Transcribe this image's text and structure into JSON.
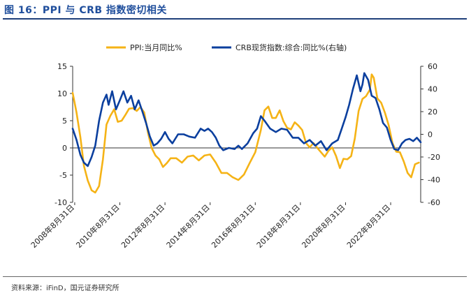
{
  "header": {
    "title": "图 16：PPI 与 CRB 指数密切相关"
  },
  "footer": {
    "source": "资料来源：iFinD，国元证券研究所"
  },
  "colors": {
    "ppi": "#F5B316",
    "crb": "#0B3F9E",
    "axis": "#333333"
  },
  "chart_data": {
    "type": "line",
    "title": "",
    "legend": [
      "PPI:当月同比%",
      "CRB现货指数:综合:同比%(右轴)"
    ],
    "x_tick_labels": [
      "2008年8月31日",
      "2010年8月31日",
      "2012年8月31日",
      "2014年8月31日",
      "2016年8月31日",
      "2018年8月31日",
      "2020年8月31日",
      "2022年8月31日"
    ],
    "x_ticks_year": [
      2008.67,
      2010.67,
      2012.67,
      2014.67,
      2016.67,
      2018.67,
      2020.67,
      2022.67
    ],
    "xlim": [
      2008.58,
      2024.0
    ],
    "y_left": {
      "lim": [
        -10,
        15
      ],
      "ticks": [
        15,
        10,
        5,
        0,
        -5,
        -10
      ]
    },
    "y_right": {
      "lim": [
        -60,
        60
      ],
      "ticks": [
        60,
        40,
        20,
        0,
        -20,
        -40,
        -60
      ]
    },
    "series": [
      {
        "name": "PPI:当月同比%",
        "axis": "left",
        "x": [
          2008.58,
          2008.75,
          2008.92,
          2009.08,
          2009.25,
          2009.42,
          2009.58,
          2009.75,
          2009.92,
          2010.08,
          2010.25,
          2010.42,
          2010.58,
          2010.75,
          2010.92,
          2011.08,
          2011.25,
          2011.42,
          2011.58,
          2011.75,
          2011.92,
          2012.08,
          2012.25,
          2012.42,
          2012.58,
          2012.75,
          2012.92,
          2013.17,
          2013.42,
          2013.67,
          2013.92,
          2014.17,
          2014.42,
          2014.67,
          2014.92,
          2015.17,
          2015.42,
          2015.67,
          2015.92,
          2016.17,
          2016.42,
          2016.67,
          2016.92,
          2017.08,
          2017.25,
          2017.42,
          2017.58,
          2017.75,
          2017.92,
          2018.08,
          2018.25,
          2018.42,
          2018.58,
          2018.75,
          2018.92,
          2019.08,
          2019.25,
          2019.42,
          2019.58,
          2019.75,
          2019.92,
          2020.08,
          2020.25,
          2020.42,
          2020.58,
          2020.75,
          2020.92,
          2021.08,
          2021.25,
          2021.42,
          2021.58,
          2021.75,
          2021.83,
          2021.92,
          2022.08,
          2022.25,
          2022.42,
          2022.58,
          2022.75,
          2022.92,
          2023.08,
          2023.25,
          2023.42,
          2023.58,
          2023.75,
          2023.92
        ],
        "values": [
          10.1,
          6.5,
          2.0,
          -3.3,
          -6.0,
          -7.8,
          -8.2,
          -7.0,
          -2.1,
          4.3,
          5.9,
          7.1,
          4.8,
          5.0,
          6.1,
          7.2,
          7.3,
          6.8,
          7.5,
          6.5,
          2.7,
          0.0,
          -1.4,
          -2.1,
          -3.5,
          -2.8,
          -1.9,
          -1.9,
          -2.7,
          -1.6,
          -1.4,
          -2.3,
          -1.4,
          -1.2,
          -2.7,
          -4.6,
          -4.6,
          -5.4,
          -5.9,
          -4.9,
          -2.8,
          -0.8,
          3.3,
          6.9,
          7.6,
          5.5,
          5.5,
          6.9,
          4.9,
          3.7,
          3.4,
          4.7,
          4.1,
          3.3,
          0.9,
          0.1,
          0.9,
          0.0,
          -0.8,
          -1.6,
          -0.5,
          0.1,
          -1.5,
          -3.7,
          -2.0,
          -2.1,
          -1.5,
          1.7,
          6.8,
          9.0,
          9.5,
          10.7,
          13.5,
          12.9,
          9.1,
          8.3,
          6.4,
          4.2,
          0.9,
          -0.7,
          -0.8,
          -2.5,
          -4.6,
          -5.4,
          -3.0,
          -2.7
        ]
      },
      {
        "name": "CRB现货指数:综合:同比%(右轴)",
        "axis": "right",
        "x": [
          2008.58,
          2008.75,
          2008.92,
          2009.08,
          2009.25,
          2009.42,
          2009.58,
          2009.75,
          2009.92,
          2010.08,
          2010.17,
          2010.33,
          2010.5,
          2010.67,
          2010.83,
          2011.0,
          2011.17,
          2011.33,
          2011.5,
          2011.67,
          2011.83,
          2012.0,
          2012.17,
          2012.33,
          2012.5,
          2012.67,
          2012.83,
          2013.0,
          2013.25,
          2013.5,
          2013.75,
          2014.0,
          2014.25,
          2014.42,
          2014.58,
          2014.75,
          2014.92,
          2015.08,
          2015.25,
          2015.5,
          2015.75,
          2015.92,
          2016.08,
          2016.33,
          2016.58,
          2016.75,
          2016.92,
          2017.08,
          2017.33,
          2017.58,
          2017.83,
          2018.08,
          2018.33,
          2018.58,
          2018.83,
          2019.08,
          2019.33,
          2019.58,
          2019.83,
          2020.08,
          2020.33,
          2020.5,
          2020.67,
          2020.83,
          2021.0,
          2021.17,
          2021.33,
          2021.42,
          2021.5,
          2021.67,
          2021.83,
          2022.0,
          2022.17,
          2022.33,
          2022.5,
          2022.67,
          2022.83,
          2023.0,
          2023.17,
          2023.33,
          2023.5,
          2023.67,
          2023.83,
          2024.0
        ],
        "values": [
          5,
          -5,
          -18,
          -25,
          -28,
          -20,
          -10,
          12,
          28,
          35,
          26,
          38,
          22,
          30,
          38,
          28,
          34,
          22,
          30,
          20,
          10,
          -2,
          -10,
          -8,
          -4,
          2,
          -4,
          -8,
          0,
          0,
          -2,
          -3,
          5,
          3,
          5,
          2,
          -3,
          -10,
          -14,
          -12,
          -13,
          -10,
          -13,
          -8,
          1,
          5,
          16,
          12,
          5,
          2,
          5,
          4,
          -3,
          -3,
          -8,
          -5,
          -10,
          -6,
          -14,
          -8,
          -5,
          5,
          15,
          26,
          40,
          52,
          38,
          44,
          54,
          48,
          34,
          32,
          22,
          10,
          6,
          -5,
          -13,
          -14,
          -8,
          -5,
          -4,
          -6,
          -3,
          -7
        ]
      }
    ]
  }
}
